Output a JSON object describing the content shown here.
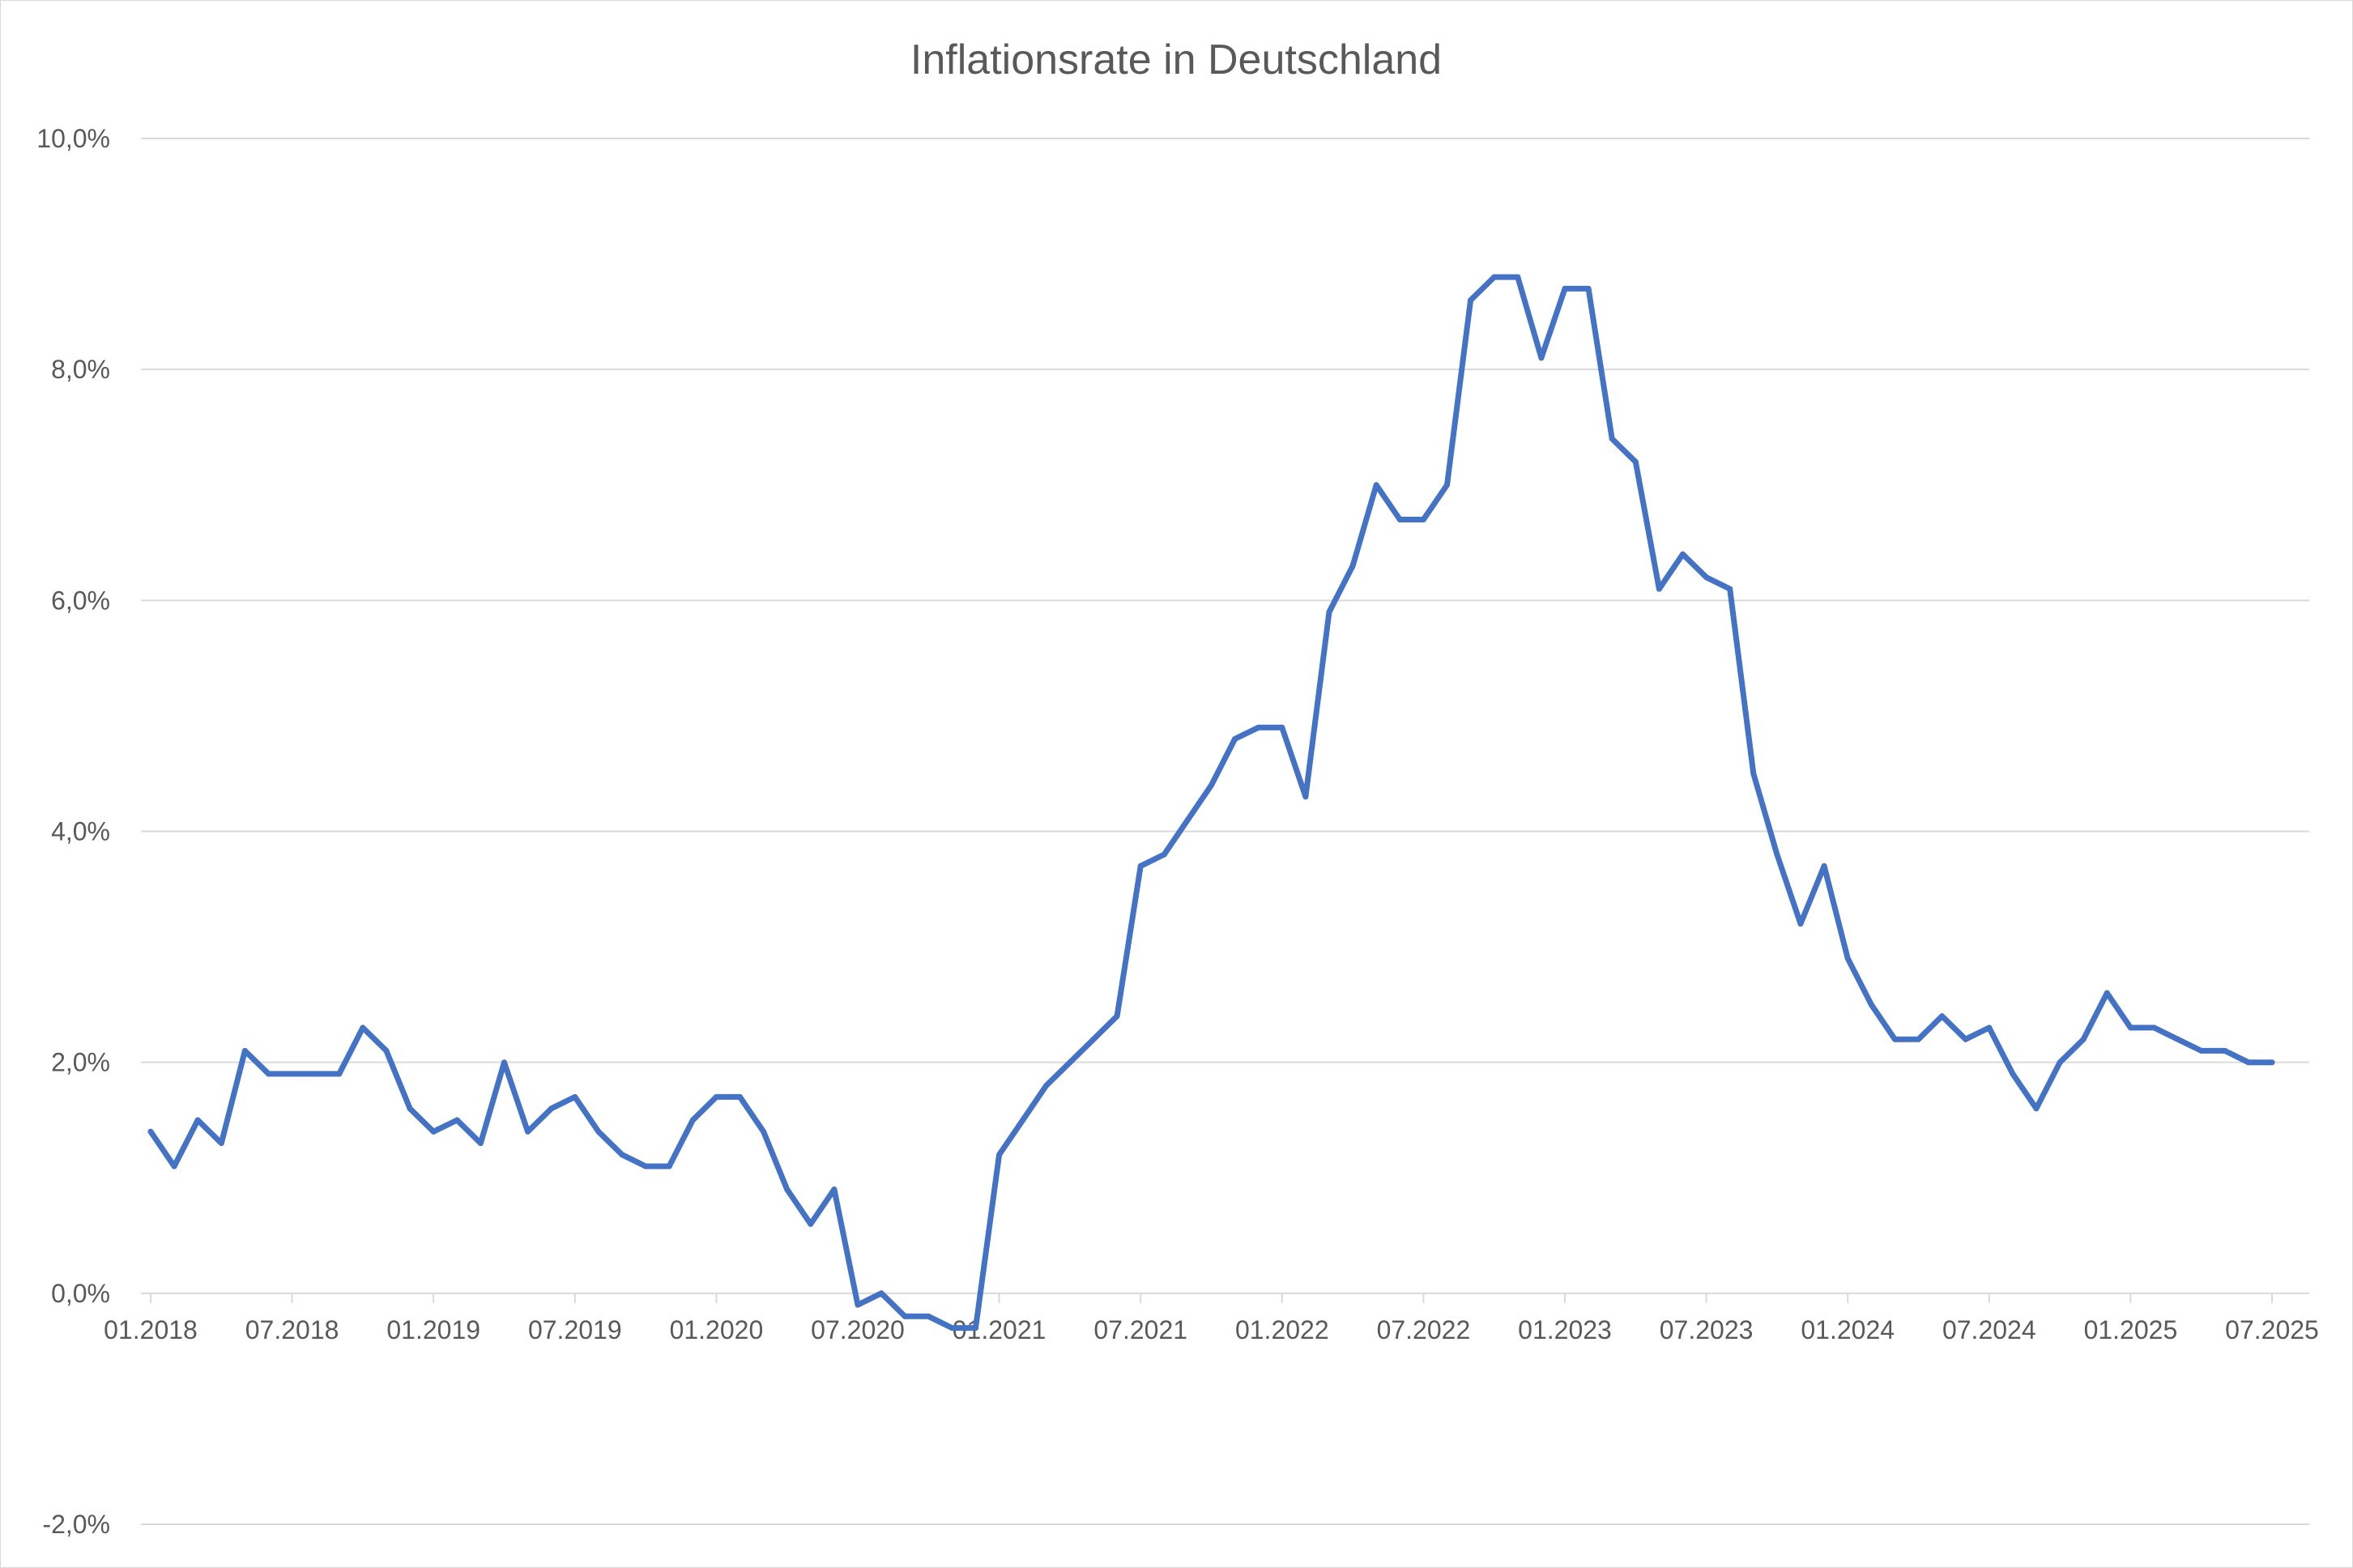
{
  "chart_data": {
    "type": "line",
    "title": "Inflationsrate in Deutschland",
    "xlabel": "",
    "ylabel": "",
    "ylim": [
      -2.0,
      10.0
    ],
    "y_ticks": [
      "10,0%",
      "8,0%",
      "6,0%",
      "4,0%",
      "2,0%",
      "0,0%",
      "-2,0%"
    ],
    "y_tick_values": [
      10,
      8,
      6,
      4,
      2,
      0,
      -2
    ],
    "x_ticks": [
      "01.2018",
      "07.2018",
      "01.2019",
      "07.2019",
      "01.2020",
      "07.2020",
      "01.2021",
      "07.2021",
      "01.2022",
      "07.2022",
      "01.2023",
      "07.2023",
      "01.2024",
      "07.2024",
      "01.2025",
      "07.2025"
    ],
    "grid": true,
    "legend": "none",
    "line_color": "#4472C4",
    "series": [
      {
        "x_start": "01.2018",
        "x_end": "07.2025",
        "values": [
          1.4,
          1.1,
          1.5,
          1.3,
          2.1,
          1.9,
          1.9,
          1.9,
          1.9,
          2.3,
          2.1,
          1.6,
          1.4,
          1.5,
          1.3,
          2.0,
          1.4,
          1.6,
          1.7,
          1.4,
          1.2,
          1.1,
          1.1,
          1.5,
          1.7,
          1.7,
          1.4,
          0.9,
          0.6,
          0.9,
          -0.1,
          0.0,
          -0.2,
          -0.2,
          -0.3,
          -0.3,
          1.2,
          1.5,
          1.8,
          2.0,
          2.2,
          2.4,
          3.7,
          3.8,
          4.1,
          4.4,
          4.8,
          4.9,
          4.9,
          4.3,
          5.9,
          6.3,
          7.0,
          6.7,
          6.7,
          7.0,
          8.6,
          8.8,
          8.8,
          8.1,
          8.7,
          8.7,
          7.4,
          7.2,
          6.1,
          6.4,
          6.2,
          6.1,
          4.5,
          3.8,
          3.2,
          3.7,
          2.9,
          2.5,
          2.2,
          2.2,
          2.4,
          2.2,
          2.3,
          1.9,
          1.6,
          2.0,
          2.2,
          2.6,
          2.3,
          2.3,
          2.2,
          2.1,
          2.1,
          2.0,
          2.0
        ]
      }
    ]
  }
}
